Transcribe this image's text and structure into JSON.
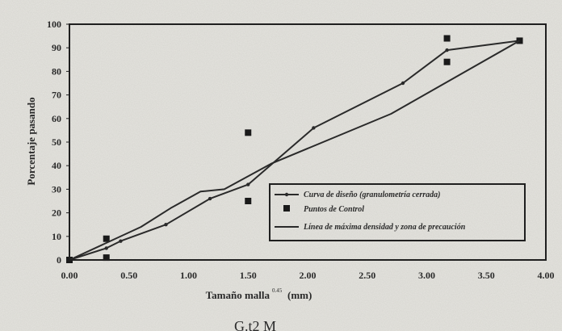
{
  "chart_data": {
    "type": "line",
    "xlabel": "Tamaño malla",
    "xlabel_superscript": "0.45",
    "xlabel_unit": "(mm)",
    "ylabel": "Porcentaje pasando",
    "xlim": [
      0,
      4.0
    ],
    "ylim": [
      0,
      100
    ],
    "x_ticks": [
      0,
      0.5,
      1.0,
      1.5,
      2.0,
      2.5,
      3.0,
      3.5,
      4.0
    ],
    "x_tick_labels": [
      "0.00",
      "0.50",
      "1.00",
      "1.50",
      "2.00",
      "2.50",
      "3.00",
      "3.50",
      "4.00"
    ],
    "y_ticks": [
      0,
      10,
      20,
      30,
      40,
      50,
      60,
      70,
      80,
      90,
      100
    ],
    "y_tick_labels": [
      "0",
      "10",
      "20",
      "30",
      "40",
      "50",
      "60",
      "70",
      "80",
      "90",
      "100"
    ],
    "grid": false,
    "legend_position": "lower-right",
    "series": [
      {
        "name": "Curva de diseño (granulometría cerrada)",
        "style": "line-with-markers",
        "color": "#2a2a2a",
        "points": [
          [
            0,
            0
          ],
          [
            0.31,
            5
          ],
          [
            0.43,
            8
          ],
          [
            0.81,
            15
          ],
          [
            1.18,
            26
          ],
          [
            1.5,
            32
          ],
          [
            2.05,
            56
          ],
          [
            2.8,
            75
          ],
          [
            3.17,
            89
          ],
          [
            3.78,
            93
          ]
        ]
      },
      {
        "name": "Puntos de Control",
        "style": "markers",
        "color": "#1a1a1a",
        "points": [
          [
            0,
            0
          ],
          [
            0.31,
            1
          ],
          [
            0.31,
            9
          ],
          [
            1.5,
            25
          ],
          [
            1.5,
            54
          ],
          [
            3.17,
            84
          ],
          [
            3.17,
            94
          ],
          [
            3.78,
            93
          ]
        ]
      },
      {
        "name": "Línea de máxima densidad y zona de precaución",
        "style": "line",
        "color": "#2a2a2a",
        "points": [
          [
            0,
            0
          ],
          [
            0.6,
            14
          ],
          [
            0.85,
            22
          ],
          [
            1.1,
            29
          ],
          [
            1.3,
            30
          ],
          [
            1.7,
            41
          ],
          [
            2.7,
            62
          ],
          [
            3.78,
            93
          ]
        ]
      }
    ],
    "caption": "G.t2   M"
  }
}
